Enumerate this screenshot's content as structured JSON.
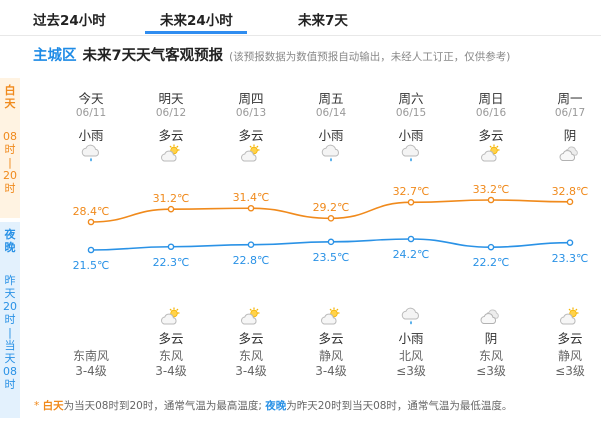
{
  "tabs": [
    {
      "label": "过去24小时",
      "active": false
    },
    {
      "label": "未来24小时",
      "active": true
    },
    {
      "label": "未来7天",
      "active": false
    }
  ],
  "header": {
    "district": "主城区",
    "title": "未来7天天气客观预报",
    "note": "(该预报数据为数值预报自动输出，未经人工订正，仅供参考)"
  },
  "side": {
    "day_label": "白天",
    "day_range": [
      "08",
      "时",
      "|",
      "20",
      "时"
    ],
    "night_label": "夜晚",
    "night_range": [
      "昨",
      "天",
      "20",
      "时",
      "|",
      "当",
      "天",
      "08",
      "时"
    ]
  },
  "colors": {
    "accent_blue": "#2a92e6",
    "day_orange": "#f08a1c",
    "day_bg": "#fff3e2",
    "night_bg": "#e3f1fd"
  },
  "days": [
    {
      "name": "今天",
      "date": "06/11",
      "day_weather": "小雨",
      "day_icon": "light-rain-icon",
      "night_weather": "",
      "night_icon": "",
      "wind_dir": "东南风",
      "wind_level": "3-4级"
    },
    {
      "name": "明天",
      "date": "06/12",
      "day_weather": "多云",
      "day_icon": "partly-cloudy-icon",
      "night_weather": "多云",
      "night_icon": "partly-cloudy-icon",
      "wind_dir": "东风",
      "wind_level": "3-4级"
    },
    {
      "name": "周四",
      "date": "06/13",
      "day_weather": "多云",
      "day_icon": "partly-cloudy-icon",
      "night_weather": "多云",
      "night_icon": "partly-cloudy-icon",
      "wind_dir": "东风",
      "wind_level": "3-4级"
    },
    {
      "name": "周五",
      "date": "06/14",
      "day_weather": "小雨",
      "day_icon": "light-rain-icon",
      "night_weather": "多云",
      "night_icon": "partly-cloudy-icon",
      "wind_dir": "静风",
      "wind_level": "3-4级"
    },
    {
      "name": "周六",
      "date": "06/15",
      "day_weather": "小雨",
      "day_icon": "light-rain-icon",
      "night_weather": "小雨",
      "night_icon": "light-rain-icon",
      "wind_dir": "北风",
      "wind_level": "≤3级"
    },
    {
      "name": "周日",
      "date": "06/16",
      "day_weather": "多云",
      "day_icon": "partly-cloudy-icon",
      "night_weather": "阴",
      "night_icon": "overcast-icon",
      "wind_dir": "东风",
      "wind_level": "≤3级"
    },
    {
      "name": "周一",
      "date": "06/17",
      "day_weather": "阴",
      "day_icon": "overcast-icon",
      "night_weather": "多云",
      "night_icon": "partly-cloudy-icon",
      "wind_dir": "静风",
      "wind_level": "≤3级"
    }
  ],
  "chart_data": {
    "type": "line",
    "categories": [
      "06/11",
      "06/12",
      "06/13",
      "06/14",
      "06/15",
      "06/16",
      "06/17"
    ],
    "series": [
      {
        "values": [
          28.4,
          31.2,
          31.4,
          29.2,
          32.7,
          33.2,
          32.8
        ],
        "labels": [
          "28.4℃",
          "31.2℃",
          "31.4℃",
          "29.2℃",
          "32.7℃",
          "33.2℃",
          "32.8℃"
        ],
        "color": "#f08a1c"
      },
      {
        "values": [
          21.5,
          22.3,
          22.8,
          23.5,
          24.2,
          22.2,
          23.3
        ],
        "labels": [
          "21.5℃",
          "22.3℃",
          "22.8℃",
          "23.5℃",
          "24.2℃",
          "22.2℃",
          "23.3℃"
        ],
        "color": "#2a92e6"
      }
    ],
    "grid": false
  },
  "footer": {
    "star": "*",
    "day_kw": "白天",
    "day_text": "为当天08时到20时，通常气温为最高温度;",
    "night_kw": "夜晚",
    "night_text": "为昨天20时到当天08时，通常气温为最低温度。"
  }
}
